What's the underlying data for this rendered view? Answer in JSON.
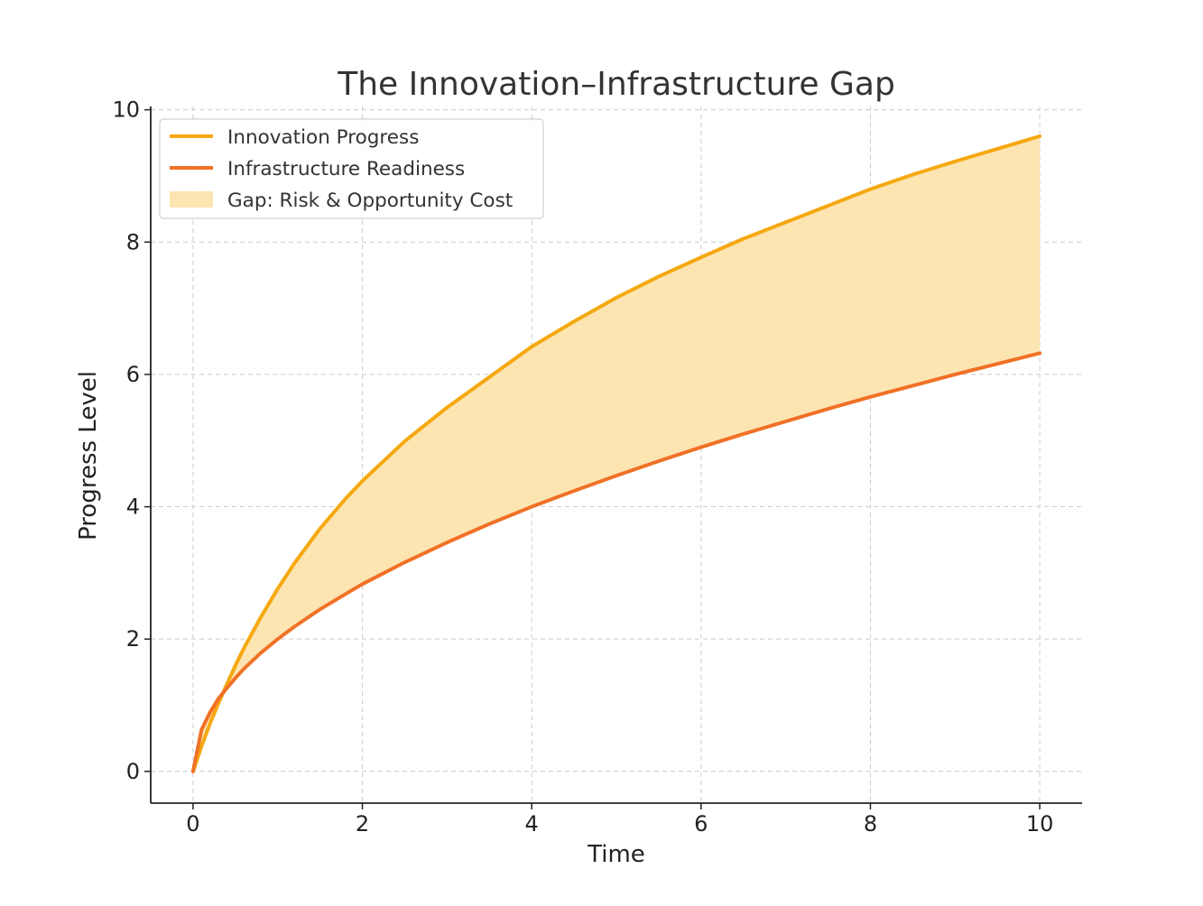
{
  "chart_data": {
    "type": "line",
    "title": "The Innovation–Infrastructure Gap",
    "xlabel": "Time",
    "ylabel": "Progress Level",
    "xlim": [
      -0.5,
      10.5
    ],
    "ylim": [
      -0.48,
      10.05
    ],
    "xticks": [
      0,
      2,
      4,
      6,
      8,
      10
    ],
    "yticks": [
      0,
      2,
      4,
      6,
      8,
      10
    ],
    "grid": true,
    "legend_position": "top-left",
    "x": [
      0,
      0.1,
      0.2,
      0.3,
      0.4,
      0.5,
      0.6,
      0.8,
      1.0,
      1.2,
      1.5,
      1.8,
      2.0,
      2.5,
      3.0,
      3.5,
      4.0,
      4.5,
      5.0,
      5.5,
      6.0,
      6.5,
      7.0,
      7.5,
      8.0,
      8.5,
      9.0,
      9.5,
      10.0
    ],
    "series": [
      {
        "name": "Innovation Progress",
        "color": "#f5a810",
        "values": [
          0,
          0.38,
          0.72,
          1.03,
          1.32,
          1.6,
          1.86,
          2.33,
          2.76,
          3.15,
          3.67,
          4.12,
          4.39,
          4.99,
          5.5,
          5.96,
          6.42,
          6.8,
          7.16,
          7.48,
          7.77,
          8.05,
          8.3,
          8.55,
          8.8,
          9.02,
          9.22,
          9.41,
          9.6
        ]
      },
      {
        "name": "Infrastructure Readiness",
        "color": "#f07126",
        "values": [
          0,
          0.63,
          0.89,
          1.1,
          1.26,
          1.41,
          1.55,
          1.79,
          2.0,
          2.19,
          2.45,
          2.68,
          2.83,
          3.16,
          3.46,
          3.74,
          4.0,
          4.24,
          4.47,
          4.69,
          4.9,
          5.1,
          5.29,
          5.48,
          5.66,
          5.83,
          6.0,
          6.16,
          6.32
        ]
      }
    ],
    "fill_between": {
      "name": "Gap: Risk & Opportunity Cost",
      "color": "#fde5b2"
    }
  }
}
